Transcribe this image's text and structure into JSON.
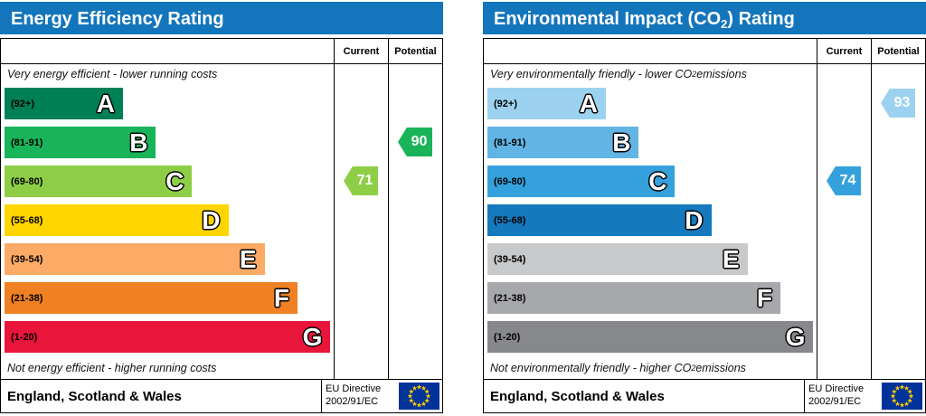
{
  "colors": {
    "header": "#1375bc",
    "eu_flag_blue": "#003399",
    "eu_star_yellow": "#ffcc00"
  },
  "chart_data": [
    {
      "type": "bar",
      "subtype": "epc-rating-bands",
      "title": {
        "pre": "Energy Efficiency Rating",
        "sub": "",
        "post": ""
      },
      "columns": {
        "current": "Current",
        "potential": "Potential"
      },
      "top_note": {
        "pre": "Very energy efficient - lower running costs",
        "sub": "",
        "post": ""
      },
      "bottom_note": {
        "pre": "Not energy efficient - higher running costs",
        "sub": "",
        "post": ""
      },
      "bands": [
        {
          "letter": "A",
          "range": "(92+)",
          "color": "#008054",
          "width_pct": 36
        },
        {
          "letter": "B",
          "range": "(81-91)",
          "color": "#19b459",
          "width_pct": 46
        },
        {
          "letter": "C",
          "range": "(69-80)",
          "color": "#8dce46",
          "width_pct": 57
        },
        {
          "letter": "D",
          "range": "(55-68)",
          "color": "#ffd500",
          "width_pct": 68
        },
        {
          "letter": "E",
          "range": "(39-54)",
          "color": "#fcaa65",
          "width_pct": 79
        },
        {
          "letter": "F",
          "range": "(21-38)",
          "color": "#ef8023",
          "width_pct": 89
        },
        {
          "letter": "G",
          "range": "(1-20)",
          "color": "#e9153b",
          "width_pct": 99
        }
      ],
      "current": {
        "value": 71,
        "band": "C",
        "color": "#8dce46"
      },
      "potential": {
        "value": 90,
        "band": "B",
        "color": "#19b459"
      },
      "footer": {
        "region": "England, Scotland & Wales",
        "directive_line1": "EU Directive",
        "directive_line2": "2002/91/EC"
      }
    },
    {
      "type": "bar",
      "subtype": "epc-rating-bands",
      "title": {
        "pre": "Environmental Impact (CO",
        "sub": "2",
        "post": ") Rating"
      },
      "columns": {
        "current": "Current",
        "potential": "Potential"
      },
      "top_note": {
        "pre": "Very environmentally friendly - lower CO",
        "sub": "2",
        "post": " emissions"
      },
      "bottom_note": {
        "pre": "Not environmentally friendly - higher CO",
        "sub": "2",
        "post": " emissions"
      },
      "bands": [
        {
          "letter": "A",
          "range": "(92+)",
          "color": "#9cd2ef",
          "width_pct": 36
        },
        {
          "letter": "B",
          "range": "(81-91)",
          "color": "#62b4e4",
          "width_pct": 46
        },
        {
          "letter": "C",
          "range": "(69-80)",
          "color": "#34a1dc",
          "width_pct": 57
        },
        {
          "letter": "D",
          "range": "(55-68)",
          "color": "#1579bd",
          "width_pct": 68
        },
        {
          "letter": "E",
          "range": "(39-54)",
          "color": "#c8c9cb",
          "width_pct": 79
        },
        {
          "letter": "F",
          "range": "(21-38)",
          "color": "#a6a8ab",
          "width_pct": 89
        },
        {
          "letter": "G",
          "range": "(1-20)",
          "color": "#86888b",
          "width_pct": 99
        }
      ],
      "current": {
        "value": 74,
        "band": "C",
        "color": "#34a1dc"
      },
      "potential": {
        "value": 93,
        "band": "A",
        "color": "#9cd2ef"
      },
      "footer": {
        "region": "England, Scotland & Wales",
        "directive_line1": "EU Directive",
        "directive_line2": "2002/91/EC"
      }
    }
  ]
}
